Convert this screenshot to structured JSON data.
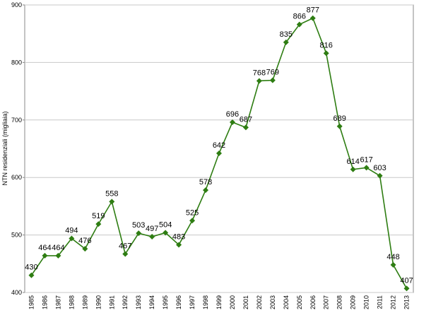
{
  "chart_data": {
    "type": "line",
    "y_label": "NTN residenziali (migliaia)",
    "categories": [
      "1985",
      "1986",
      "1987",
      "1988",
      "1989",
      "1990",
      "1991",
      "1992",
      "1993",
      "1994",
      "1995",
      "1996",
      "1997",
      "1998",
      "1999",
      "2000",
      "2001",
      "2002",
      "2003",
      "2004",
      "2005",
      "2006",
      "2007",
      "2008",
      "2009",
      "2010",
      "2011",
      "2012",
      "2013"
    ],
    "series": [
      {
        "name": "NTN residenziali",
        "color": "#2e7d12",
        "values": [
          430,
          464,
          464,
          494,
          476,
          519,
          558,
          467,
          503,
          497,
          504,
          483,
          525,
          578,
          642,
          696,
          687,
          768,
          769,
          835,
          866,
          877,
          816,
          689,
          614,
          617,
          603,
          448,
          407
        ]
      }
    ],
    "ylim": [
      400,
      900
    ],
    "yticks": [
      400,
      500,
      600,
      700,
      800,
      900
    ],
    "grid": true
  }
}
